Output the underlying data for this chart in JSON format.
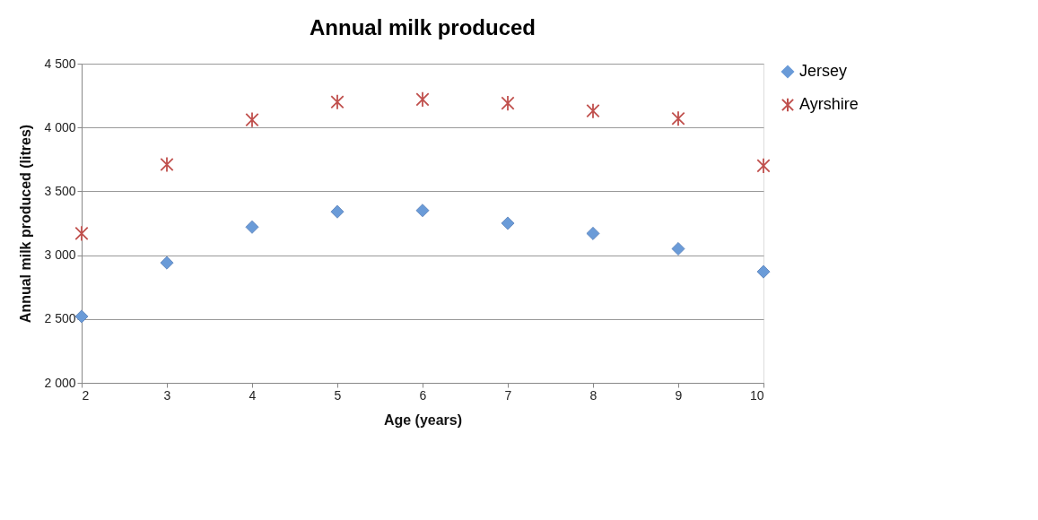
{
  "chart_data": {
    "type": "scatter",
    "title": "Annual milk produced",
    "xlabel": "Age (years)",
    "ylabel": "Annual milk produced (litres)",
    "x": [
      2,
      3,
      4,
      5,
      6,
      7,
      8,
      9,
      10
    ],
    "series": [
      {
        "name": "Jersey",
        "color": "#6a9bd8",
        "marker": "diamond",
        "values": [
          2520,
          2940,
          3220,
          3340,
          3350,
          3250,
          3170,
          3050,
          2870
        ]
      },
      {
        "name": "Ayrshire",
        "color": "#c0504d",
        "marker": "cross",
        "values": [
          3170,
          3710,
          4060,
          4200,
          4220,
          4190,
          4130,
          4070,
          3700
        ]
      }
    ],
    "xlim": [
      2,
      10
    ],
    "xticks": [
      2,
      3,
      4,
      5,
      6,
      7,
      8,
      9,
      10
    ],
    "ylim": [
      2000,
      4500
    ],
    "yticks": [
      {
        "value": 2000,
        "label": "2 000"
      },
      {
        "value": 2500,
        "label": "2 500"
      },
      {
        "value": 3000,
        "label": "3 000"
      },
      {
        "value": 3500,
        "label": "3 500"
      },
      {
        "value": 4000,
        "label": "4 000"
      },
      {
        "value": 4500,
        "label": "4 500"
      }
    ],
    "grid": "y",
    "legend": "right"
  }
}
